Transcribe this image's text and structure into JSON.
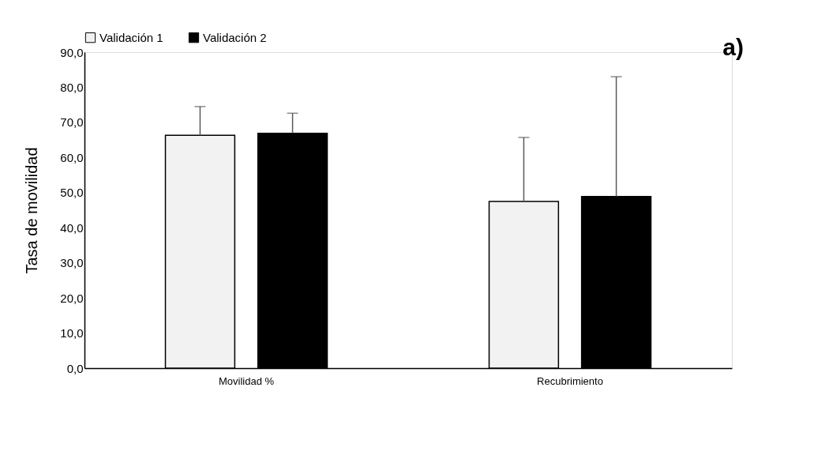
{
  "chart_data": {
    "type": "bar",
    "ylabel": "Tasa de movilidad",
    "categories": [
      "Movilidad %",
      "Recubrimiento"
    ],
    "series": [
      {
        "name": "Validación 1",
        "color": "#f2f2f2",
        "values": [
          66.3,
          47.5
        ],
        "errors": [
          [
            66.3,
            74.5
          ],
          [
            47.5,
            65.7
          ]
        ]
      },
      {
        "name": "Validación 2",
        "color": "#000000",
        "values": [
          66.9,
          48.9
        ],
        "errors": [
          [
            66.9,
            72.6
          ],
          [
            48.9,
            83.0
          ]
        ]
      }
    ],
    "ylim": [
      0,
      90
    ],
    "yticks": [
      {
        "value": 0,
        "label": "0,0"
      },
      {
        "value": 10,
        "label": "10,0"
      },
      {
        "value": 20,
        "label": "20,0"
      },
      {
        "value": 30,
        "label": "30,0"
      },
      {
        "value": 40,
        "label": "40,0"
      },
      {
        "value": 50,
        "label": "50,0"
      },
      {
        "value": 60,
        "label": "60,0"
      },
      {
        "value": 70,
        "label": "70,0"
      },
      {
        "value": 80,
        "label": "80,0"
      },
      {
        "value": 90,
        "label": "90,0"
      }
    ],
    "legend": "top",
    "grid": false,
    "annotations": [
      "a)"
    ]
  }
}
